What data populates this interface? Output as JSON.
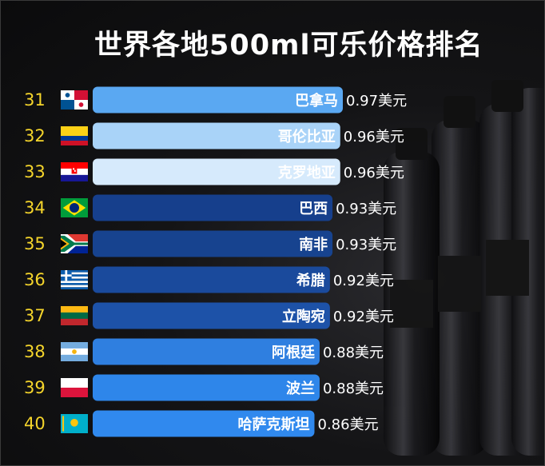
{
  "chart_data": {
    "type": "bar",
    "orientation": "horizontal",
    "title": "世界各地500ml可乐价格排名",
    "ranks": [
      "31",
      "32",
      "33",
      "34",
      "35",
      "36",
      "37",
      "38",
      "39",
      "40"
    ],
    "categories": [
      "巴拿马",
      "哥伦比亚",
      "克罗地亚",
      "巴西",
      "南非",
      "希腊",
      "立陶宛",
      "阿根廷",
      "波兰",
      "哈萨克斯坦"
    ],
    "values": [
      0.97,
      0.96,
      0.96,
      0.93,
      0.93,
      0.92,
      0.92,
      0.88,
      0.88,
      0.86
    ],
    "value_labels": [
      "0.97美元",
      "0.96美元",
      "0.96美元",
      "0.93美元",
      "0.93美元",
      "0.92美元",
      "0.92美元",
      "0.88美元",
      "0.88美元",
      "0.86美元"
    ],
    "flags": [
      "flag-panama-icon",
      "flag-colombia-icon",
      "flag-croatia-icon",
      "flag-brazil-icon",
      "flag-south-africa-icon",
      "flag-greece-icon",
      "flag-lithuania-icon",
      "flag-argentina-icon",
      "flag-poland-icon",
      "flag-kazakhstan-icon"
    ],
    "bar_colors": [
      "#5aa8f2",
      "#a9d3f8",
      "#d6eafc",
      "#163f8c",
      "#17438f",
      "#1a4a9c",
      "#1d52a8",
      "#2f7fe0",
      "#2e86ea",
      "#3089ee"
    ],
    "rank_color": "#f5d52b",
    "xlim": [
      0,
      0.97
    ],
    "grid": false,
    "legend": "none"
  }
}
